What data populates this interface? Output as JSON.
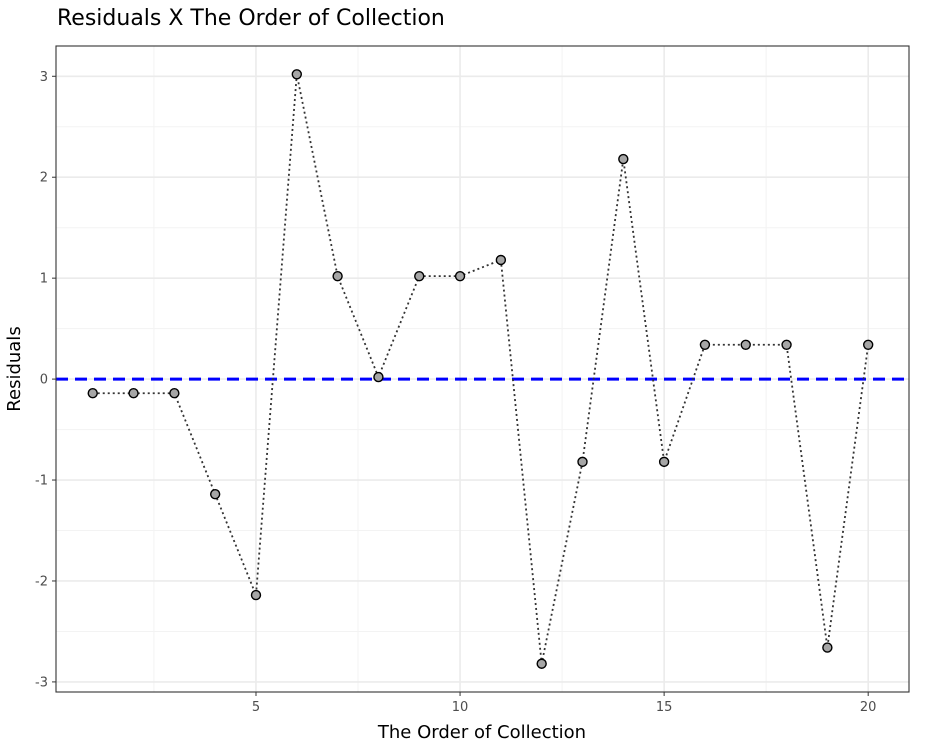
{
  "chart_data": {
    "type": "line",
    "title": "Residuals X The Order of Collection",
    "xlabel": "The Order of Collection",
    "ylabel": "Residuals",
    "xlim": [
      0.1,
      21.0
    ],
    "ylim": [
      -3.1,
      3.3
    ],
    "x_ticks": [
      5,
      10,
      15,
      20
    ],
    "y_ticks": [
      -3,
      -2,
      -1,
      0,
      1,
      2,
      3
    ],
    "grid": true,
    "reference_line": {
      "y": 0,
      "style": "dashed",
      "color": "#0000ff"
    },
    "series": [
      {
        "line_style": "dotted",
        "line_color": "#333333",
        "marker_fill": "#a6a6a6",
        "marker_edge": "#000000",
        "x": [
          1,
          2,
          3,
          4,
          5,
          6,
          7,
          8,
          9,
          10,
          11,
          12,
          13,
          14,
          15,
          16,
          17,
          18,
          19,
          20
        ],
        "y": [
          -0.14,
          -0.14,
          -0.14,
          -1.14,
          -2.14,
          3.02,
          1.02,
          0.02,
          1.02,
          1.02,
          1.18,
          -2.82,
          -0.82,
          2.18,
          -0.82,
          0.34,
          0.34,
          0.34,
          -2.66,
          0.34
        ]
      }
    ]
  }
}
